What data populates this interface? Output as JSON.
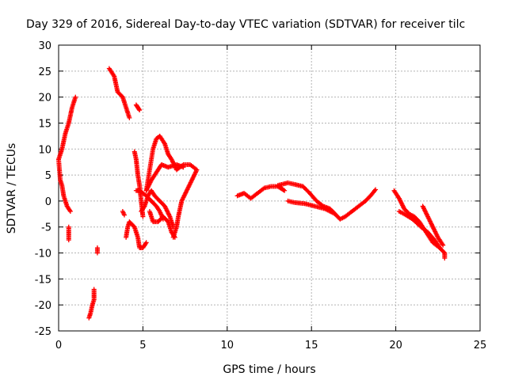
{
  "chart_data": {
    "type": "scatter",
    "title": "Day 329 of 2016, Sidereal Day-to-day VTEC variation (SDTVAR) for receiver tilc",
    "xlabel": "GPS time / hours",
    "ylabel": "SDTVAR / TECUs",
    "xlim": [
      0,
      25
    ],
    "ylim": [
      -25,
      30
    ],
    "xticks": [
      "0",
      "5",
      "10",
      "15",
      "20",
      "25"
    ],
    "yticks": [
      "-25",
      "-20",
      "-15",
      "-10",
      "-5",
      "0",
      "5",
      "10",
      "15",
      "20",
      "25",
      "30"
    ],
    "grid": true,
    "marker": "+",
    "color": "#ff0000",
    "tracks": [
      {
        "name": "t1",
        "points": [
          [
            0.0,
            8
          ],
          [
            0.2,
            10
          ],
          [
            0.4,
            13
          ],
          [
            0.6,
            15
          ],
          [
            0.8,
            18
          ],
          [
            1.0,
            20
          ]
        ]
      },
      {
        "name": "t2",
        "points": [
          [
            0.0,
            8
          ],
          [
            0.1,
            4
          ],
          [
            0.2,
            3
          ],
          [
            0.3,
            1
          ],
          [
            0.5,
            -1
          ],
          [
            0.7,
            -2
          ]
        ]
      },
      {
        "name": "t3",
        "points": [
          [
            0.6,
            -5
          ],
          [
            0.6,
            -7.5
          ]
        ]
      },
      {
        "name": "t4",
        "points": [
          [
            2.3,
            -9
          ],
          [
            2.3,
            -10
          ]
        ]
      },
      {
        "name": "t5",
        "points": [
          [
            1.8,
            -22.5
          ],
          [
            1.9,
            -21.5
          ],
          [
            2.0,
            -20
          ],
          [
            2.1,
            -19
          ],
          [
            2.1,
            -17
          ]
        ]
      },
      {
        "name": "t6",
        "points": [
          [
            3.0,
            25.5
          ],
          [
            3.3,
            24
          ],
          [
            3.5,
            21
          ],
          [
            3.8,
            20
          ],
          [
            4.0,
            18
          ],
          [
            4.2,
            16
          ]
        ]
      },
      {
        "name": "t7",
        "points": [
          [
            4.6,
            18.5
          ],
          [
            4.7,
            18
          ],
          [
            4.8,
            17.5
          ]
        ]
      },
      {
        "name": "t8",
        "points": [
          [
            3.8,
            -2
          ],
          [
            3.9,
            -2.7
          ]
        ]
      },
      {
        "name": "t9",
        "points": [
          [
            4.5,
            9.5
          ],
          [
            4.6,
            8
          ],
          [
            4.7,
            5
          ],
          [
            4.8,
            3
          ],
          [
            4.9,
            0
          ],
          [
            5.0,
            -3
          ]
        ]
      },
      {
        "name": "t10",
        "points": [
          [
            4.0,
            -7
          ],
          [
            4.1,
            -5
          ],
          [
            4.2,
            -4
          ],
          [
            4.5,
            -5
          ],
          [
            4.7,
            -7
          ],
          [
            4.8,
            -9
          ],
          [
            5.0,
            -9
          ],
          [
            5.2,
            -8
          ]
        ]
      },
      {
        "name": "t11",
        "points": [
          [
            4.6,
            2
          ],
          [
            4.8,
            2
          ],
          [
            5.0,
            1.5
          ],
          [
            5.2,
            1
          ],
          [
            5.5,
            0
          ],
          [
            5.8,
            -1
          ],
          [
            6.0,
            -2
          ],
          [
            6.2,
            -3.5
          ]
        ]
      },
      {
        "name": "t12",
        "points": [
          [
            4.9,
            -2
          ],
          [
            5.1,
            -1
          ],
          [
            5.3,
            1
          ],
          [
            5.5,
            2
          ],
          [
            5.7,
            1
          ],
          [
            6.0,
            0
          ],
          [
            6.3,
            -1
          ],
          [
            6.6,
            -3
          ],
          [
            6.8,
            -5
          ]
        ]
      },
      {
        "name": "t13",
        "points": [
          [
            5.4,
            -2
          ],
          [
            5.6,
            -4
          ],
          [
            5.9,
            -4
          ],
          [
            6.2,
            -3
          ],
          [
            6.5,
            -4
          ],
          [
            6.7,
            -6
          ],
          [
            6.9,
            -7
          ]
        ]
      },
      {
        "name": "t14",
        "points": [
          [
            5.2,
            2
          ],
          [
            5.4,
            6
          ],
          [
            5.6,
            10
          ],
          [
            5.8,
            12
          ],
          [
            6.0,
            12.5
          ],
          [
            6.3,
            11
          ],
          [
            6.5,
            9
          ],
          [
            6.7,
            8
          ],
          [
            7.0,
            6
          ],
          [
            7.4,
            7
          ],
          [
            7.8,
            7
          ],
          [
            8.2,
            6
          ],
          [
            7.9,
            4
          ],
          [
            7.6,
            2
          ],
          [
            7.3,
            0
          ],
          [
            7.1,
            -3
          ],
          [
            7.0,
            -5
          ],
          [
            6.8,
            -7
          ]
        ]
      },
      {
        "name": "t15",
        "points": [
          [
            5.2,
            2
          ],
          [
            5.5,
            4
          ],
          [
            5.8,
            5.5
          ],
          [
            6.1,
            7
          ],
          [
            6.5,
            6.5
          ],
          [
            7.0,
            7
          ],
          [
            7.4,
            6.5
          ]
        ]
      },
      {
        "name": "t16",
        "points": [
          [
            10.6,
            1
          ],
          [
            11.0,
            1.5
          ],
          [
            11.4,
            0.5
          ],
          [
            11.8,
            1.5
          ],
          [
            12.2,
            2.5
          ],
          [
            12.6,
            2.8
          ],
          [
            13.0,
            2.8
          ],
          [
            13.4,
            2
          ],
          [
            13.0,
            3
          ],
          [
            13.6,
            3.5
          ],
          [
            14.0,
            3.2
          ],
          [
            14.5,
            2.8
          ],
          [
            14.9,
            1.5
          ],
          [
            15.3,
            0
          ],
          [
            15.7,
            -1
          ],
          [
            16.1,
            -1.5
          ],
          [
            16.4,
            -2.5
          ],
          [
            16.7,
            -3.5
          ],
          [
            17.0,
            -3
          ],
          [
            17.4,
            -2
          ],
          [
            17.8,
            -1
          ],
          [
            18.2,
            0
          ],
          [
            18.5,
            1
          ],
          [
            18.8,
            2.2
          ]
        ]
      },
      {
        "name": "t17",
        "points": [
          [
            13.6,
            0
          ],
          [
            14.0,
            -0.3
          ],
          [
            14.6,
            -0.5
          ],
          [
            15.2,
            -1
          ],
          [
            15.8,
            -1.5
          ],
          [
            16.4,
            -2.5
          ]
        ]
      },
      {
        "name": "t18",
        "points": [
          [
            19.9,
            2
          ],
          [
            20.2,
            0.5
          ],
          [
            20.5,
            -1.5
          ],
          [
            20.8,
            -2.5
          ],
          [
            21.1,
            -3
          ],
          [
            21.4,
            -4
          ],
          [
            21.8,
            -6
          ],
          [
            22.2,
            -8
          ],
          [
            22.6,
            -9
          ]
        ]
      },
      {
        "name": "t19",
        "points": [
          [
            20.2,
            -2
          ],
          [
            20.5,
            -2.5
          ],
          [
            21.0,
            -3.5
          ],
          [
            21.5,
            -5
          ],
          [
            21.9,
            -6
          ],
          [
            22.3,
            -7.5
          ],
          [
            22.6,
            -9
          ],
          [
            22.9,
            -10
          ],
          [
            22.9,
            -11
          ]
        ]
      },
      {
        "name": "t20",
        "points": [
          [
            21.6,
            -1
          ],
          [
            21.9,
            -3
          ],
          [
            22.2,
            -5
          ],
          [
            22.5,
            -7
          ],
          [
            22.8,
            -8.5
          ]
        ]
      }
    ]
  }
}
